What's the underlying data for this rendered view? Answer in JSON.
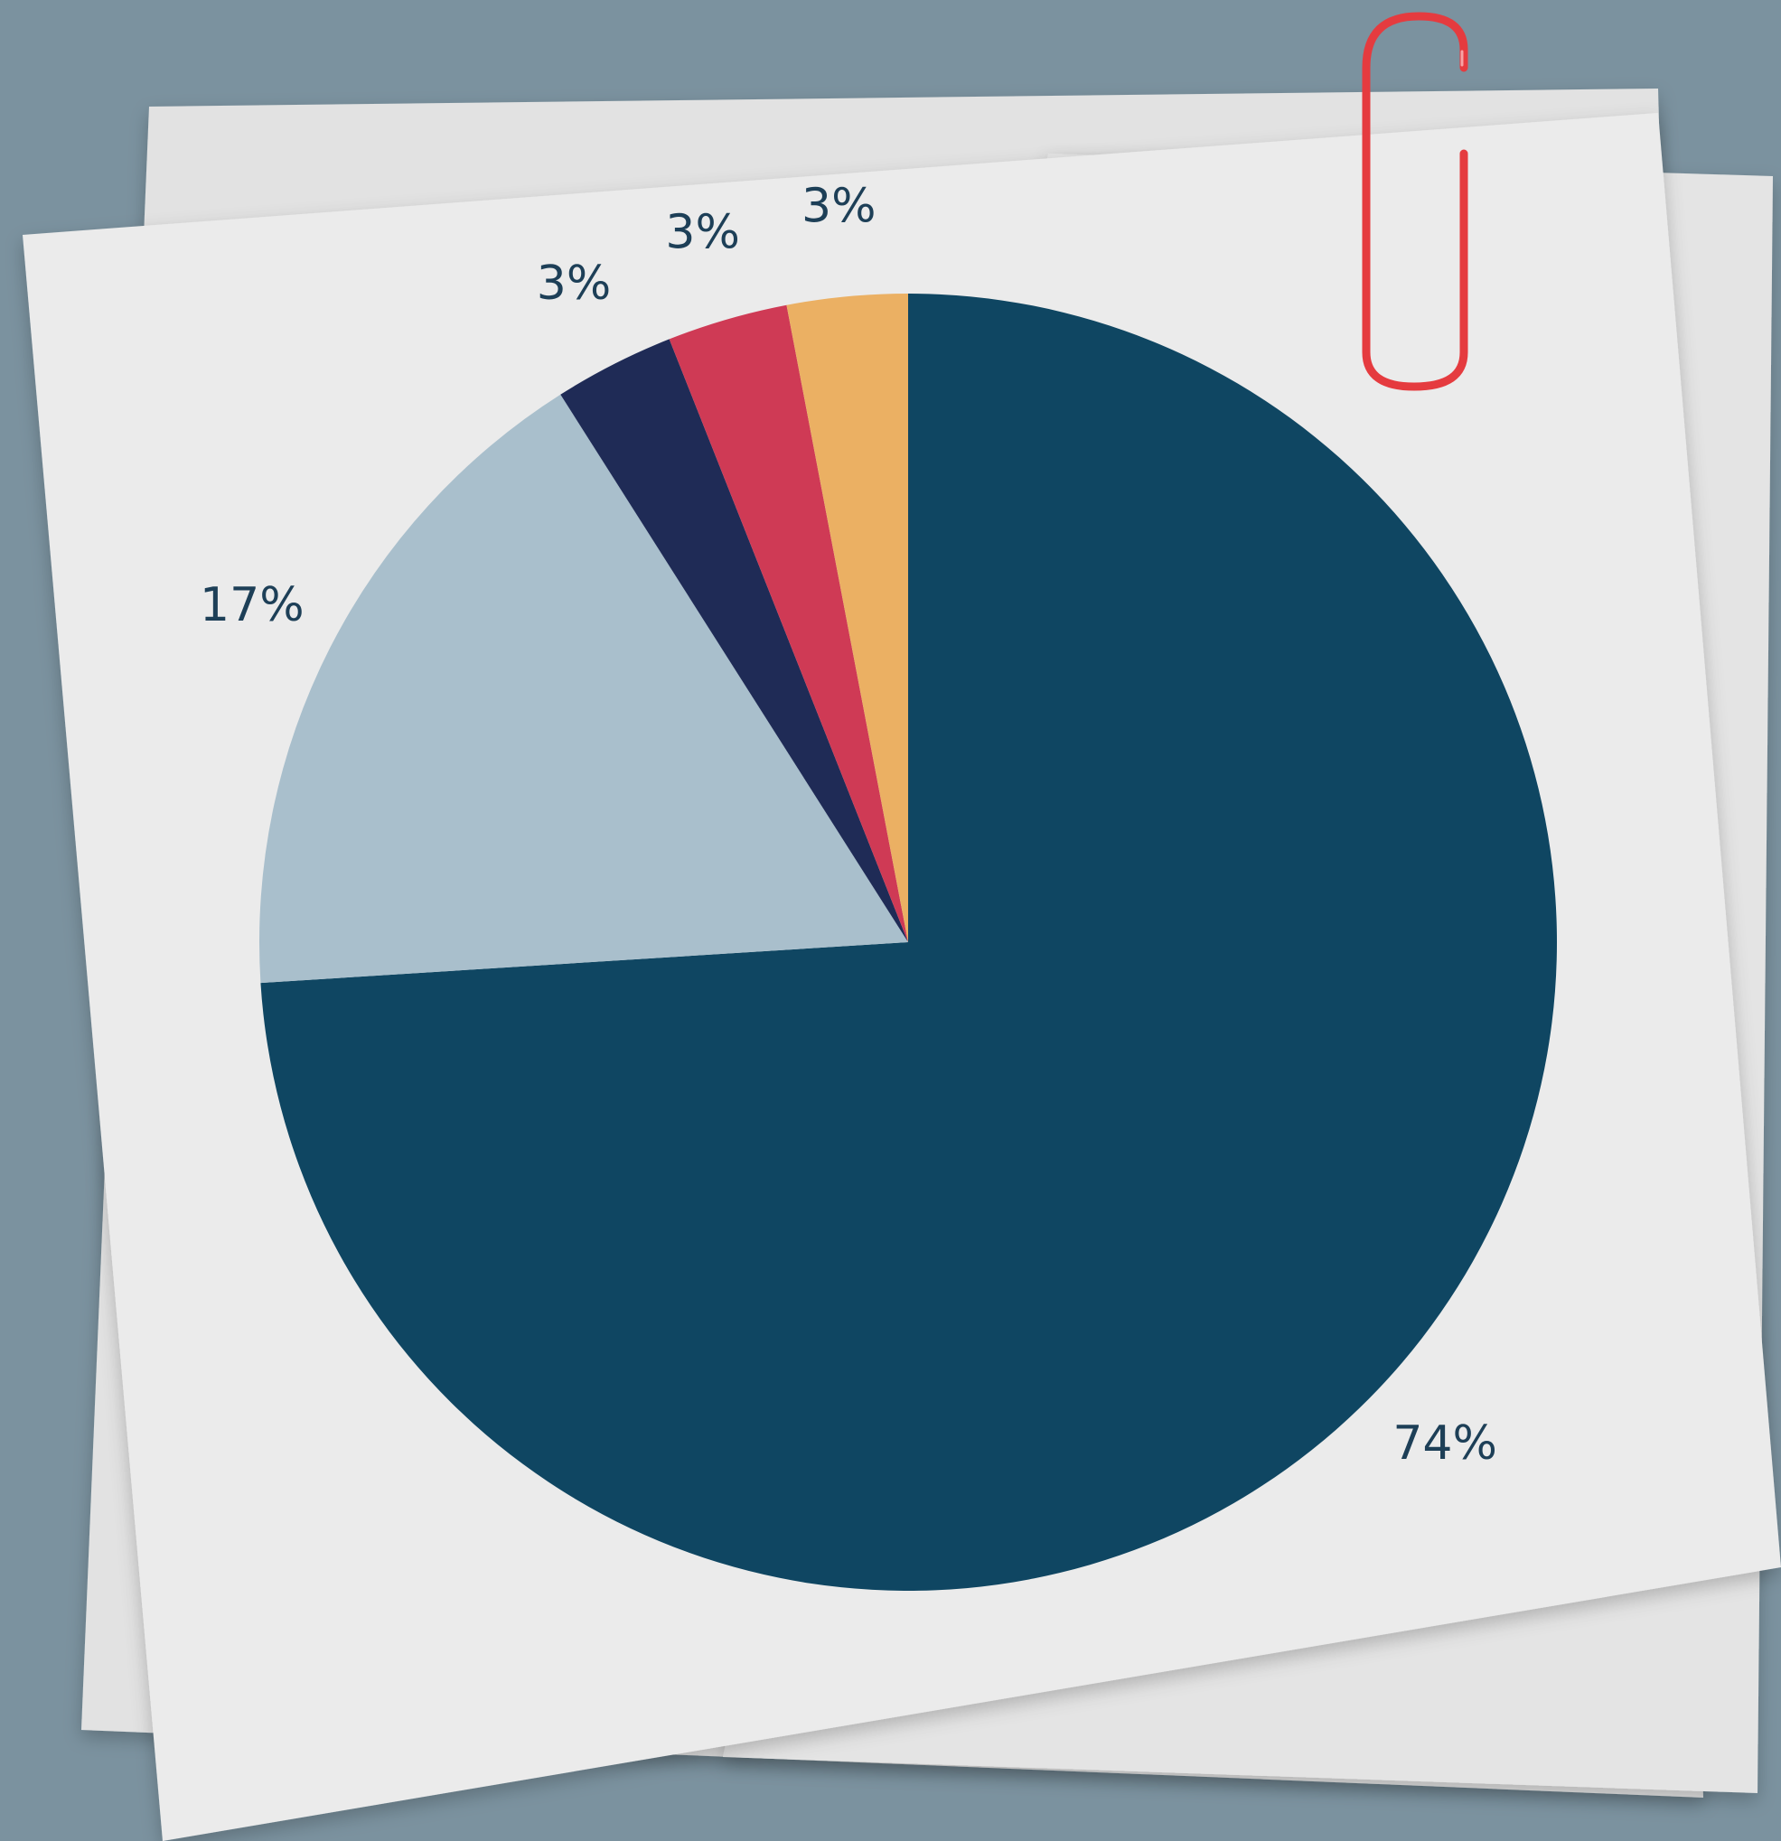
{
  "chart_data": {
    "type": "pie",
    "title": "",
    "start_angle_deg": 0,
    "direction": "clockwise",
    "slices": [
      {
        "label": "74%",
        "value": 74,
        "color": "#0f4662"
      },
      {
        "label": "17%",
        "value": 17,
        "color": "#a9bfcc"
      },
      {
        "label": "3%",
        "value": 3,
        "color": "#1f2b56"
      },
      {
        "label": "3%",
        "value": 3,
        "color": "#cf3a55"
      },
      {
        "label": "3%",
        "value": 3,
        "color": "#ebb063"
      }
    ]
  },
  "theme": {
    "background": "#7b929f",
    "paper": "#ebebeb",
    "paper_back": "#e2e2e2",
    "paperclip": "#e53b3f",
    "label_color": "#1d3f57"
  },
  "decorations": {
    "paperclip_icon": "paperclip-icon"
  }
}
